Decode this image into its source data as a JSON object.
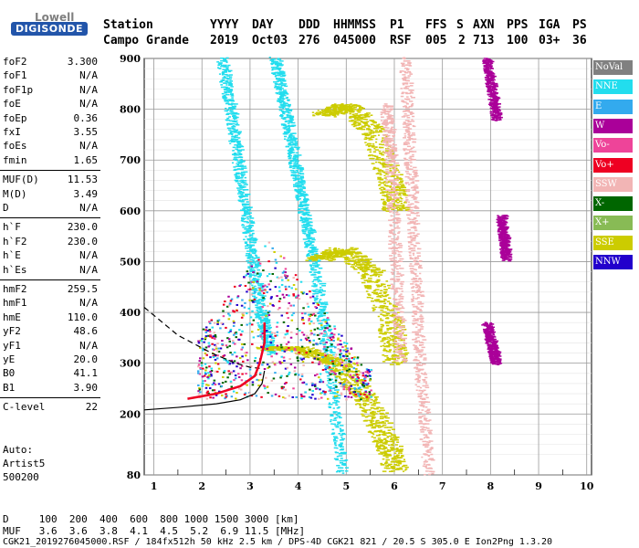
{
  "logo": {
    "top": "Lowell",
    "bottom": "DIGISONDE"
  },
  "header": {
    "row1": [
      "Station",
      "YYYY",
      "DAY",
      "DDD",
      "HHMMSS",
      "P1",
      "FFS",
      "S",
      "AXN",
      "PPS",
      "IGA",
      "PS"
    ],
    "row2": [
      "Campo Grande",
      "2019",
      "Oct03",
      "276",
      "045000",
      "RSF",
      "005",
      "2",
      "713",
      "100",
      "03+",
      "36"
    ]
  },
  "params": [
    {
      "name": "foF2",
      "value": "3.300"
    },
    {
      "name": "foF1",
      "value": "N/A"
    },
    {
      "name": "foF1p",
      "value": "N/A"
    },
    {
      "name": "foE",
      "value": "N/A"
    },
    {
      "name": "foEp",
      "value": "0.36"
    },
    {
      "name": "fxI",
      "value": "3.55"
    },
    {
      "name": "foEs",
      "value": "N/A"
    },
    {
      "name": "fmin",
      "value": "1.65"
    },
    {
      "name": "MUF(D)",
      "value": "11.53"
    },
    {
      "name": "M(D)",
      "value": "3.49"
    },
    {
      "name": "D",
      "value": "N/A"
    },
    {
      "name": "h`F",
      "value": "230.0"
    },
    {
      "name": "h`F2",
      "value": "230.0"
    },
    {
      "name": "h`E",
      "value": "N/A"
    },
    {
      "name": "h`Es",
      "value": "N/A"
    },
    {
      "name": "hmF2",
      "value": "259.5"
    },
    {
      "name": "hmF1",
      "value": "N/A"
    },
    {
      "name": "hmE",
      "value": "110.0"
    },
    {
      "name": "yF2",
      "value": "48.6"
    },
    {
      "name": "yF1",
      "value": "N/A"
    },
    {
      "name": "yE",
      "value": "20.0"
    },
    {
      "name": "B0",
      "value": "41.1"
    },
    {
      "name": "B1",
      "value": "3.90"
    },
    {
      "name": "C-level",
      "value": "22"
    }
  ],
  "auto": {
    "line1": "Auto:",
    "line2": "Artist5",
    "line3": "500200"
  },
  "legend": [
    {
      "label": "NoVal",
      "color": "#808080"
    },
    {
      "label": "NNE",
      "color": "#22ddee"
    },
    {
      "label": "E",
      "color": "#33aaee"
    },
    {
      "label": "W",
      "color": "#aa0099"
    },
    {
      "label": "Vo-",
      "color": "#ee4499"
    },
    {
      "label": "Vo+",
      "color": "#ee0022"
    },
    {
      "label": "SSW",
      "color": "#f2b5b5"
    },
    {
      "label": "X-",
      "color": "#006600"
    },
    {
      "label": "X+",
      "color": "#88bb55"
    },
    {
      "label": "SSE",
      "color": "#cccc00"
    },
    {
      "label": "NNW",
      "color": "#2200cc"
    }
  ],
  "footer": {
    "line1": "D     100  200  400  600  800 1000 1500 3000 [km]",
    "line2": "MUF   3.6  3.6  3.8  4.1  4.5  5.2  6.9 11.5 [MHz]",
    "line3": "CGK21_2019276045000.RSF / 184fx512h 50 kHz 2.5 km / DPS-4D CGK21 821 / 20.5 S 305.0 E Ion2Png 1.3.20"
  },
  "chart_data": {
    "type": "scatter",
    "xlabel": "",
    "ylabel": "",
    "xlim": [
      0.8,
      10.1
    ],
    "ylim": [
      80,
      900
    ],
    "xticks": [
      "1",
      "2",
      "3",
      "4",
      "5",
      "6",
      "7",
      "8",
      "9",
      "10"
    ],
    "yticks": [
      "80",
      "200",
      "300",
      "400",
      "500",
      "600",
      "700",
      "800",
      "900"
    ],
    "ytick_values": [
      80,
      200,
      300,
      400,
      500,
      600,
      700,
      800,
      900
    ],
    "grid": true,
    "traces": [
      {
        "name": "NNE",
        "color": "#22ddee",
        "x": [
          3.5,
          3.7,
          3.9,
          4.1,
          4.3,
          4.6,
          4.9
        ],
        "y": [
          900,
          800,
          700,
          600,
          500,
          320,
          80
        ]
      },
      {
        "name": "NNE",
        "color": "#22ddee",
        "x": [
          2.4,
          2.6,
          2.8,
          3.0,
          3.2,
          3.4
        ],
        "y": [
          900,
          780,
          650,
          520,
          400,
          320
        ]
      },
      {
        "name": "SSE",
        "color": "#cccc00",
        "x": [
          4.5,
          5.0,
          5.5,
          5.9,
          6.0
        ],
        "y": [
          790,
          810,
          760,
          660,
          600
        ]
      },
      {
        "name": "SSE",
        "color": "#cccc00",
        "x": [
          4.4,
          4.9,
          5.5,
          5.9,
          6.0
        ],
        "y": [
          505,
          525,
          480,
          380,
          300
        ]
      },
      {
        "name": "SSE",
        "color": "#cccc00",
        "x": [
          3.3,
          4.0,
          4.8,
          5.4,
          5.8,
          6.0
        ],
        "y": [
          330,
          330,
          300,
          230,
          150,
          90
        ]
      },
      {
        "name": "SSW",
        "color": "#f2b5b5",
        "x": [
          6.2,
          6.3,
          6.4,
          6.5,
          6.7
        ],
        "y": [
          900,
          700,
          500,
          300,
          80
        ]
      },
      {
        "name": "SSW",
        "color": "#f2b5b5",
        "x": [
          5.8,
          5.9,
          6.0,
          6.1
        ],
        "y": [
          810,
          700,
          500,
          300
        ]
      },
      {
        "name": "W",
        "color": "#aa0099",
        "x": [
          7.9,
          8.0,
          8.1
        ],
        "y": [
          900,
          840,
          780
        ]
      },
      {
        "name": "W",
        "color": "#aa0099",
        "x": [
          8.2,
          8.25,
          8.3
        ],
        "y": [
          590,
          550,
          505
        ]
      },
      {
        "name": "W",
        "color": "#aa0099",
        "x": [
          7.9,
          8.0,
          8.1
        ],
        "y": [
          380,
          335,
          300
        ]
      }
    ],
    "profile_curve": {
      "x": [
        1.7,
        2.3,
        2.8,
        3.1,
        3.2,
        3.3,
        3.3
      ],
      "y": [
        230,
        240,
        255,
        275,
        300,
        340,
        380
      ]
    },
    "fit_curve_solid": {
      "x": [
        0.8,
        1.5,
        2.3,
        2.8,
        3.1,
        3.25,
        3.3
      ],
      "y": [
        208,
        213,
        220,
        228,
        240,
        260,
        285
      ]
    },
    "fit_curve_dashed": {
      "x": [
        0.8,
        1.5,
        2.2,
        2.7,
        3.0,
        3.2
      ],
      "y": [
        410,
        355,
        320,
        300,
        292,
        290
      ]
    }
  }
}
